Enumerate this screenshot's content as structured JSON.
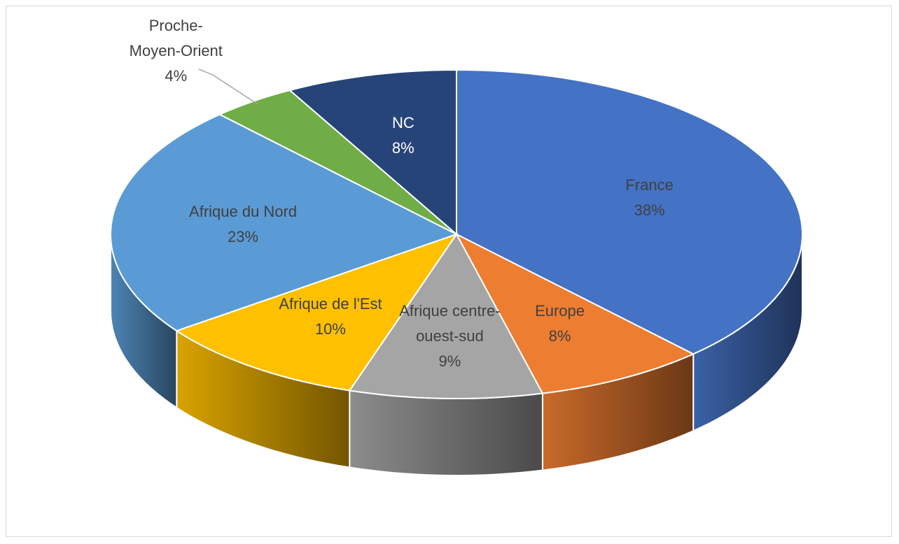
{
  "chart_data": {
    "type": "pie",
    "categories": [
      "France",
      "Europe",
      "Afrique centre-ouest-sud",
      "Afrique de l'Est",
      "Afrique du Nord",
      "Proche-Moyen-Orient",
      "NC"
    ],
    "values": [
      38,
      8,
      9,
      10,
      23,
      4,
      8
    ],
    "value_labels": [
      "38%",
      "8%",
      "9%",
      "10%",
      "23%",
      "4%",
      "8%"
    ],
    "colors": [
      "#4472c4",
      "#ed7d31",
      "#a5a5a5",
      "#ffc000",
      "#5b9bd5",
      "#70ad47",
      "#264478"
    ]
  }
}
